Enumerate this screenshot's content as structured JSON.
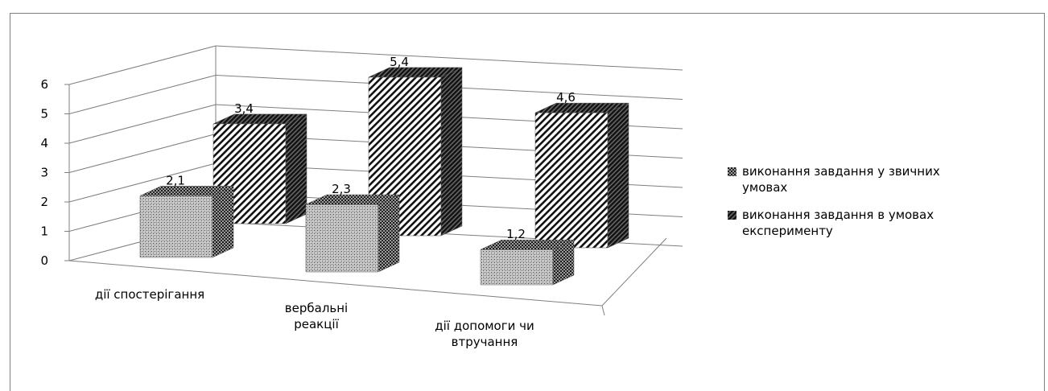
{
  "chart_data": {
    "type": "bar",
    "title": "",
    "xlabel": "",
    "ylabel": "",
    "ylim": [
      0,
      6
    ],
    "y_ticks": [
      "0",
      "1",
      "2",
      "3",
      "4",
      "5",
      "6"
    ],
    "grid": true,
    "legend_position": "right",
    "categories": [
      [
        "дії спостерігання"
      ],
      [
        "вербальні",
        "реакції"
      ],
      [
        "дії допомоги чи",
        "втручання"
      ]
    ],
    "series": [
      {
        "name": "виконання завдання у звичних умовах",
        "legend_lines": [
          "виконання завдання у звичних",
          "умовах"
        ],
        "values": [
          2.1,
          2.3,
          1.2
        ],
        "data_labels": [
          "2,1",
          "2,3",
          "1,2"
        ],
        "pattern": "crosshatch"
      },
      {
        "name": "виконання завдання в умовах експерименту",
        "legend_lines": [
          "виконання завдання в умовах",
          "експерименту"
        ],
        "values": [
          3.4,
          5.4,
          4.6
        ],
        "data_labels": [
          "3,4",
          "5,4",
          "4,6"
        ],
        "pattern": "diagonal"
      }
    ]
  }
}
